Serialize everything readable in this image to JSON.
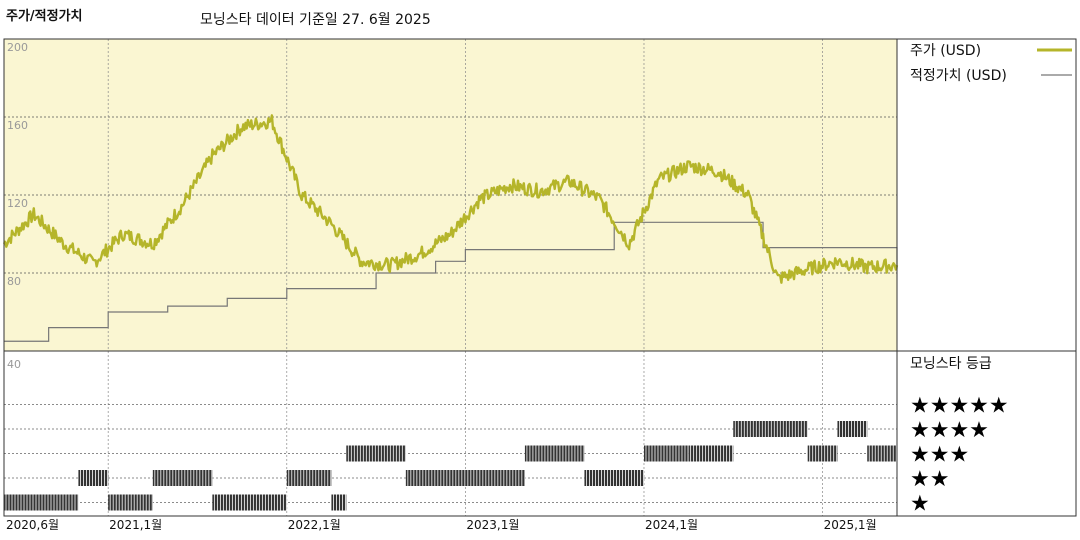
{
  "header": {
    "title": "주가/적정가치",
    "subtitle": "모닝스타 데이터 기준일 27. 6월 2025"
  },
  "colors": {
    "price": "#b5b52a",
    "fair_value": "#777777",
    "panel_bg": "#faf6d2",
    "rating_bar": "#333333"
  },
  "chart_data": [
    {
      "type": "line",
      "title": "",
      "y_ticks": [
        "200",
        "160",
        "120",
        "80"
      ],
      "ylim": [
        40,
        200
      ],
      "x_labels": [
        "2020,6월",
        "2021,1월",
        "2022,1월",
        "2023,1월",
        "2024,1월",
        "2025,1월"
      ],
      "grid": true,
      "legend_position": "right",
      "series": [
        {
          "name": "주가 (USD)",
          "x": [
            "2020-06",
            "2020-08",
            "2020-10",
            "2020-12",
            "2021-02",
            "2021-04",
            "2021-06",
            "2021-08",
            "2021-10",
            "2021-12",
            "2022-02",
            "2022-04",
            "2022-06",
            "2022-08",
            "2022-10",
            "2022-12",
            "2023-02",
            "2023-04",
            "2023-06",
            "2023-08",
            "2023-10",
            "2023-12",
            "2024-02",
            "2024-04",
            "2024-06",
            "2024-08",
            "2024-10",
            "2024-12",
            "2025-02",
            "2025-04",
            "2025-06"
          ],
          "values": [
            95,
            110,
            95,
            85,
            100,
            95,
            115,
            140,
            155,
            158,
            120,
            105,
            86,
            84,
            90,
            100,
            118,
            125,
            122,
            127,
            118,
            95,
            128,
            135,
            132,
            120,
            77,
            82,
            86,
            83,
            84
          ]
        },
        {
          "name": "적정가치 (USD)",
          "x": [
            "2020-06",
            "2020-09",
            "2021-01",
            "2021-05",
            "2021-09",
            "2022-01",
            "2022-07",
            "2022-11",
            "2023-01",
            "2023-05",
            "2023-09",
            "2023-11",
            "2024-03",
            "2024-09",
            "2025-01",
            "2025-06"
          ],
          "values": [
            45,
            52,
            60,
            63,
            67,
            72,
            80,
            86,
            92,
            92,
            92,
            106,
            106,
            93,
            93,
            82
          ]
        }
      ]
    },
    {
      "type": "bar",
      "title": "모닝스타 등급",
      "categories": [
        "★★★★★",
        "★★★★",
        "★★★",
        "★★",
        "★"
      ],
      "series": [
        {
          "name": "rating",
          "periods": [
            {
              "start": "2020-06",
              "end": "2020-11",
              "rating": 1
            },
            {
              "start": "2020-11",
              "end": "2021-01",
              "rating": 2
            },
            {
              "start": "2021-01",
              "end": "2021-04",
              "rating": 1
            },
            {
              "start": "2021-04",
              "end": "2021-08",
              "rating": 2
            },
            {
              "start": "2021-08",
              "end": "2022-01",
              "rating": 1
            },
            {
              "start": "2022-01",
              "end": "2022-04",
              "rating": 2
            },
            {
              "start": "2022-04",
              "end": "2022-05",
              "rating": 1
            },
            {
              "start": "2022-05",
              "end": "2022-09",
              "rating": 3
            },
            {
              "start": "2022-09",
              "end": "2023-05",
              "rating": 2
            },
            {
              "start": "2023-05",
              "end": "2023-09",
              "rating": 3
            },
            {
              "start": "2023-09",
              "end": "2024-01",
              "rating": 2
            },
            {
              "start": "2024-01",
              "end": "2024-04",
              "rating": 3
            },
            {
              "start": "2024-04",
              "end": "2024-07",
              "rating": 3
            },
            {
              "start": "2024-07",
              "end": "2024-12",
              "rating": 4
            },
            {
              "start": "2024-12",
              "end": "2025-02",
              "rating": 3
            },
            {
              "start": "2025-02",
              "end": "2025-04",
              "rating": 4
            },
            {
              "start": "2025-04",
              "end": "2025-06",
              "rating": 3
            }
          ]
        }
      ]
    }
  ]
}
